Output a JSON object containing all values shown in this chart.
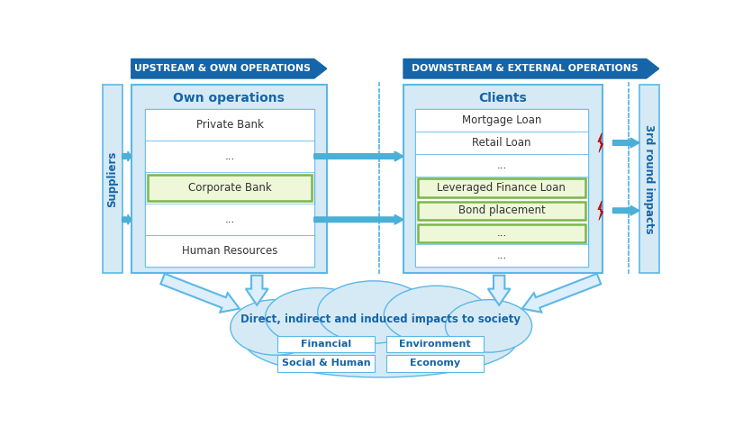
{
  "bg_color": "#ffffff",
  "light_blue_bg": "#d6eaf5",
  "mid_blue": "#5bb8e8",
  "dark_blue": "#1565a8",
  "arrow_blue": "#4bafd6",
  "green_fill": "#eef7d8",
  "green_border": "#7ab64a",
  "white_fill": "#ffffff",
  "cloud_fill": "#d6eaf5",
  "text_dark": "#333333",
  "text_blue": "#1565a8",
  "upstream_header": "UPSTREAM & OWN OPERATIONS",
  "downstream_header": "DOWNSTREAM & EXTERNAL OPERATIONS",
  "own_ops_title": "Own operations",
  "clients_title": "Clients",
  "suppliers_label": "Suppliers",
  "third_round_label": "3rd round impacts",
  "own_ops_items": [
    "Private Bank",
    "...",
    "Corporate Bank",
    "...",
    "Human Resources"
  ],
  "clients_items": [
    "Mortgage Loan",
    "Retail Loan",
    "...",
    "Leveraged Finance Loan",
    "Bond placement",
    "...",
    "..."
  ],
  "cloud_title": "Direct, indirect and induced impacts to society",
  "cloud_items": [
    [
      "Financial",
      "Environment"
    ],
    [
      "Social & Human",
      "Economy"
    ]
  ]
}
